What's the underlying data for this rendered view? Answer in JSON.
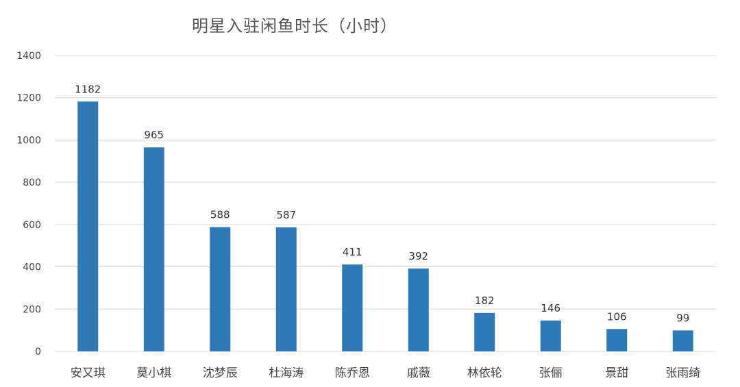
{
  "chart_data": {
    "type": "bar",
    "title": "明星入驻闲鱼时长（小时）",
    "xlabel": "",
    "ylabel": "",
    "categories": [
      "安又琪",
      "莫小棋",
      "沈梦辰",
      "杜海涛",
      "陈乔恩",
      "戚薇",
      "林依轮",
      "张俪",
      "景甜",
      "张雨绮"
    ],
    "values": [
      1182,
      965,
      588,
      587,
      411,
      392,
      182,
      146,
      106,
      99
    ],
    "ylim": [
      0,
      1400
    ],
    "yticks": [
      0,
      200,
      400,
      600,
      800,
      1000,
      1200,
      1400
    ],
    "grid": true,
    "data_labels": true,
    "legend": "none",
    "bar_color": "#2e7ab6"
  }
}
